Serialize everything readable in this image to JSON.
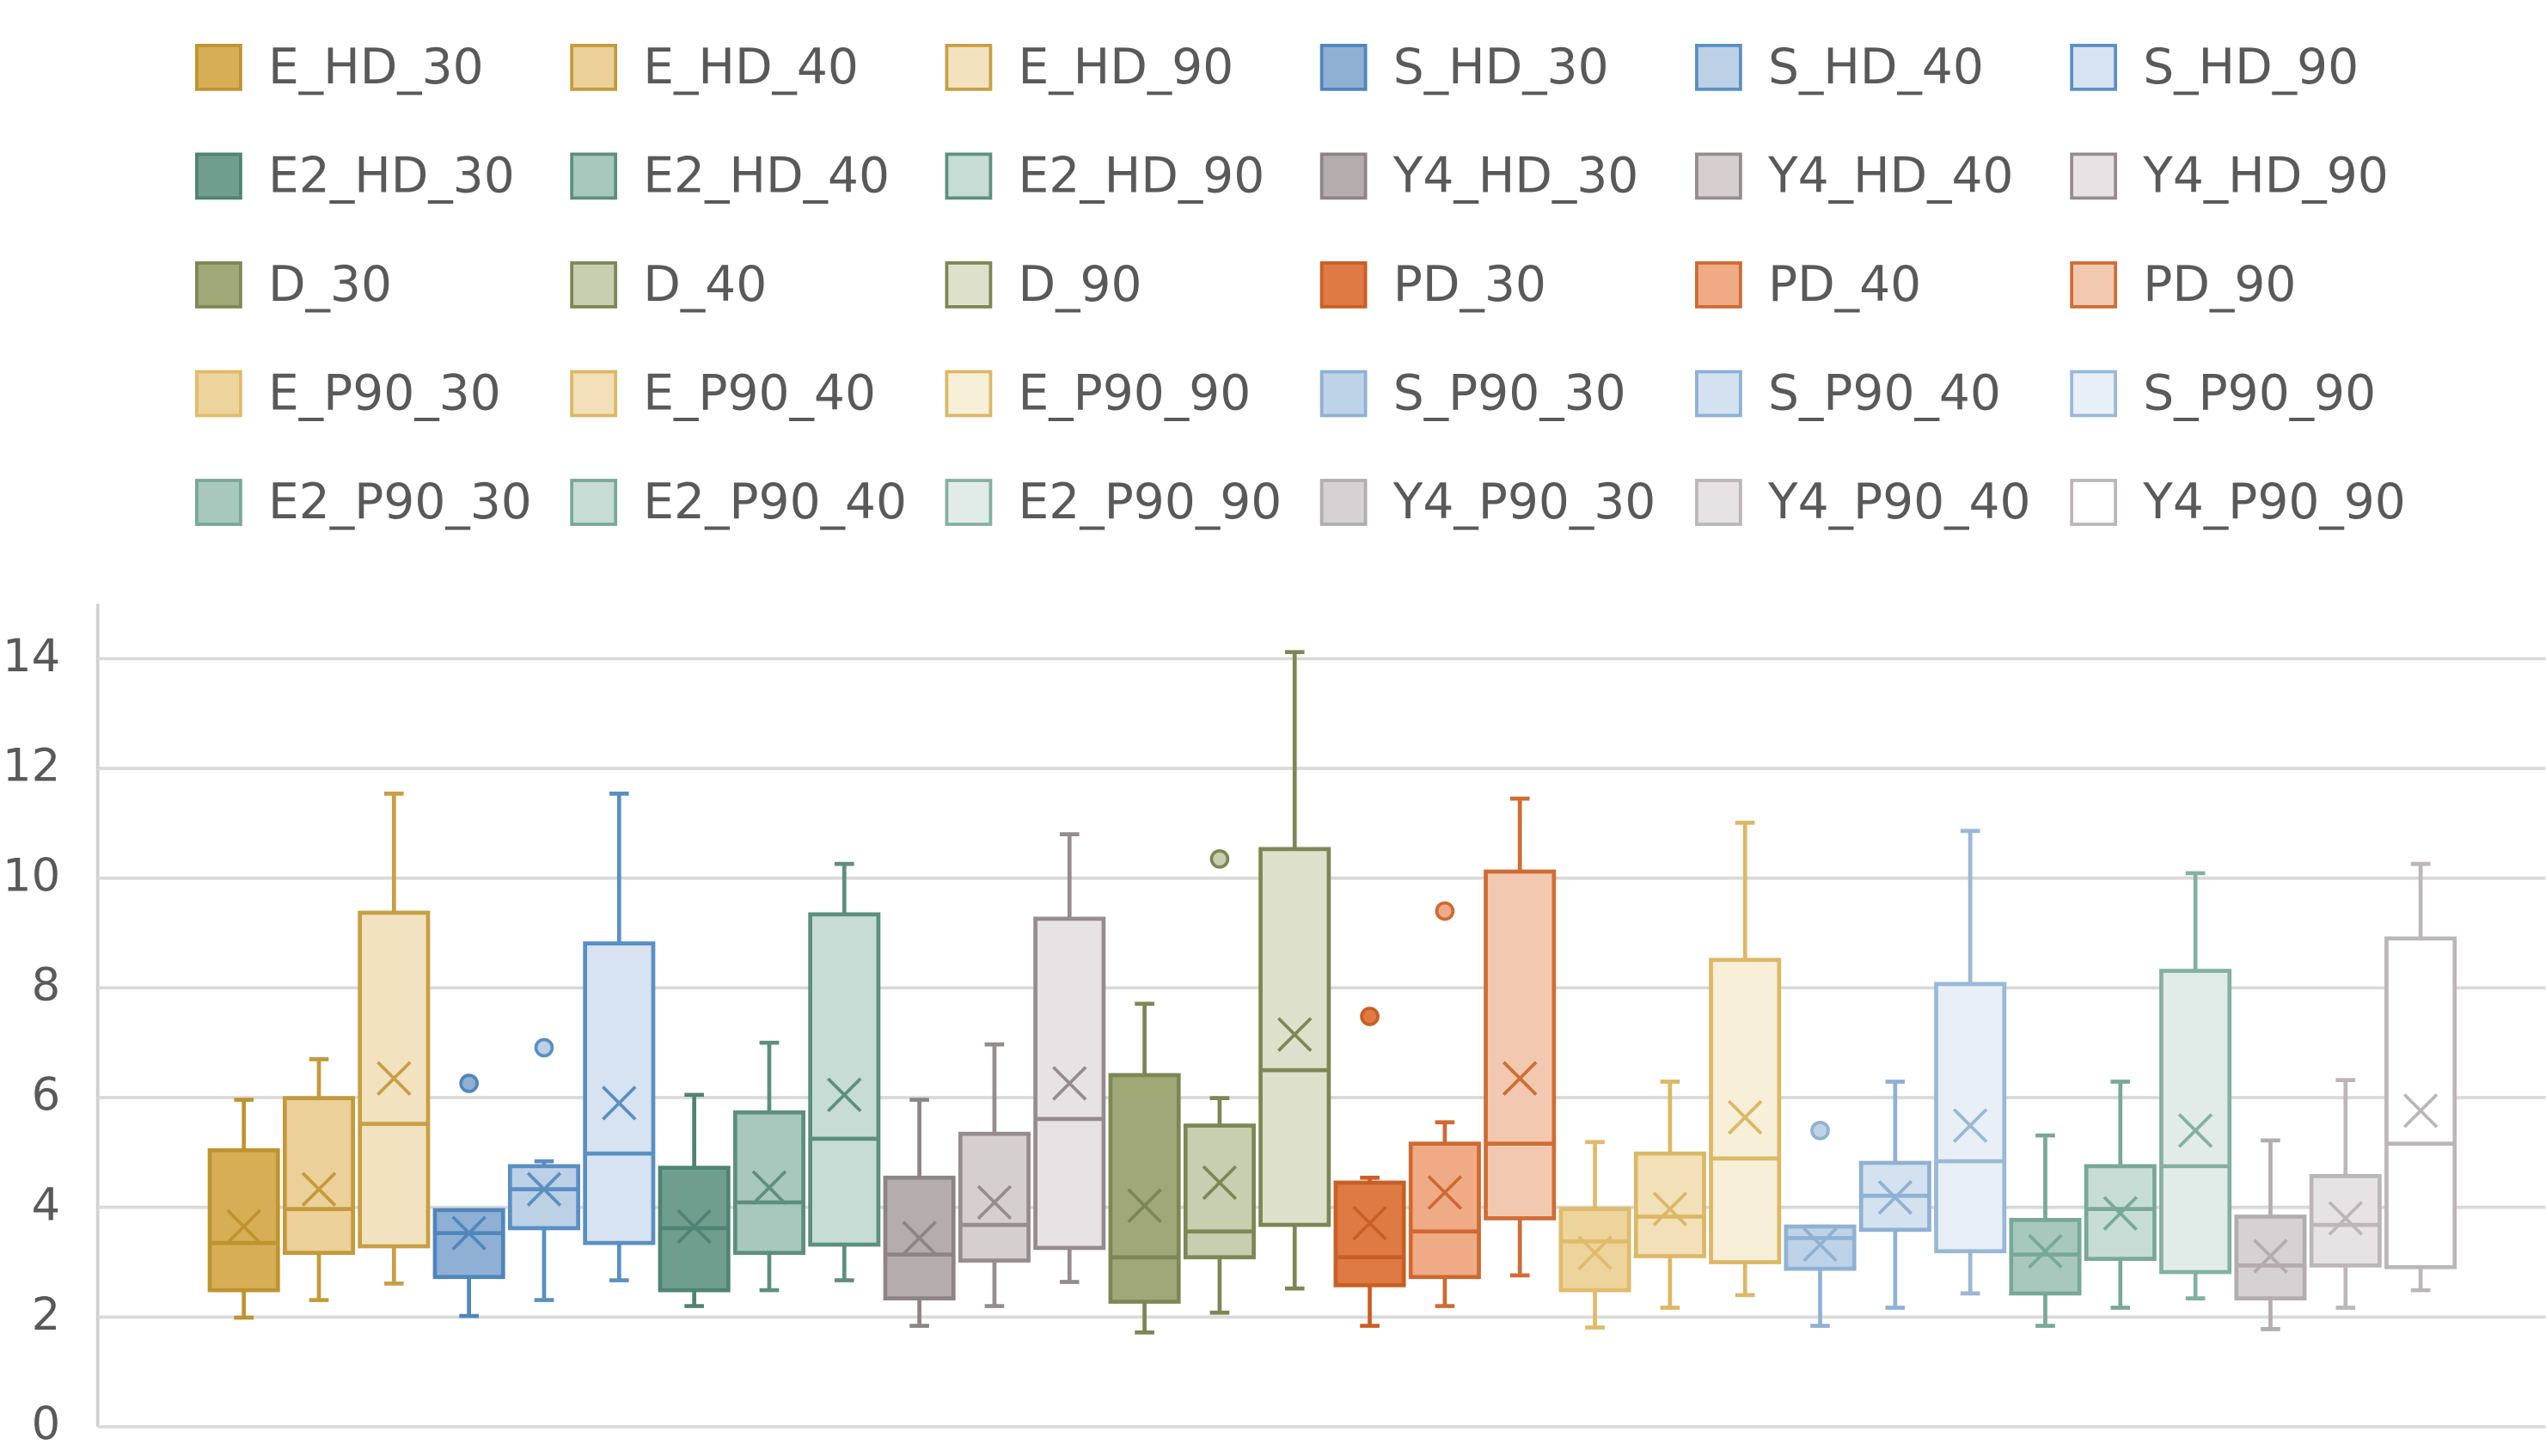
{
  "chart_data": {
    "type": "box",
    "ylim": [
      0,
      15
    ],
    "yticks": [
      0,
      2,
      4,
      6,
      8,
      10,
      12,
      14
    ],
    "grid": true,
    "series": [
      {
        "name": "E_HD_30",
        "color": "#d6ae55",
        "line_color": "#bf9330",
        "min": 1.99,
        "q1": 2.49,
        "median": 3.35,
        "q3": 5.04,
        "max": 5.96,
        "mean": 3.65,
        "outliers": []
      },
      {
        "name": "E_HD_40",
        "color": "#ebd09a",
        "line_color": "#c49a3c",
        "min": 2.31,
        "q1": 3.17,
        "median": 3.97,
        "q3": 5.99,
        "max": 6.7,
        "mean": 4.33,
        "outliers": []
      },
      {
        "name": "E_HD_90",
        "color": "#f2e2bf",
        "line_color": "#c89f45",
        "min": 2.61,
        "q1": 3.29,
        "median": 5.52,
        "q3": 9.37,
        "max": 11.54,
        "mean": 6.35,
        "outliers": []
      },
      {
        "name": "S_HD_30",
        "color": "#8fb0d4",
        "line_color": "#4f86bd",
        "min": 2.02,
        "q1": 2.73,
        "median": 3.53,
        "q3": 3.95,
        "max": 3.95,
        "mean": 3.53,
        "outliers": [
          6.26
        ]
      },
      {
        "name": "S_HD_40",
        "color": "#bcd0e6",
        "line_color": "#5a8fc3",
        "min": 2.31,
        "q1": 3.62,
        "median": 4.33,
        "q3": 4.75,
        "max": 4.84,
        "mean": 4.33,
        "outliers": [
          6.91
        ]
      },
      {
        "name": "S_HD_90",
        "color": "#d7e3f0",
        "line_color": "#5a8fc3",
        "min": 2.67,
        "q1": 3.35,
        "median": 4.98,
        "q3": 8.81,
        "max": 11.54,
        "mean": 5.9,
        "outliers": []
      },
      {
        "name": "E2_HD_30",
        "color": "#6f9e8f",
        "line_color": "#4f8373",
        "min": 2.2,
        "q1": 2.49,
        "median": 3.62,
        "q3": 4.72,
        "max": 6.05,
        "mean": 3.65,
        "outliers": []
      },
      {
        "name": "E2_HD_40",
        "color": "#a9c8bd",
        "line_color": "#5d8f7f",
        "min": 2.49,
        "q1": 3.17,
        "median": 4.09,
        "q3": 5.73,
        "max": 7.0,
        "mean": 4.36,
        "outliers": []
      },
      {
        "name": "E2_HD_90",
        "color": "#c6dcd4",
        "line_color": "#5d8f7f",
        "min": 2.67,
        "q1": 3.32,
        "median": 5.25,
        "q3": 9.34,
        "max": 10.26,
        "mean": 6.05,
        "outliers": []
      },
      {
        "name": "Y4_HD_30",
        "color": "#b5acad",
        "line_color": "#8e8486",
        "min": 1.84,
        "q1": 2.34,
        "median": 3.14,
        "q3": 4.54,
        "max": 5.96,
        "mean": 3.44,
        "outliers": []
      },
      {
        "name": "Y4_HD_40",
        "color": "#d5cfd0",
        "line_color": "#968c8e",
        "min": 2.2,
        "q1": 3.03,
        "median": 3.68,
        "q3": 5.34,
        "max": 6.97,
        "mean": 4.09,
        "outliers": []
      },
      {
        "name": "Y4_HD_90",
        "color": "#e7e3e4",
        "line_color": "#968c8e",
        "min": 2.64,
        "q1": 3.26,
        "median": 5.61,
        "q3": 9.26,
        "max": 10.8,
        "mean": 6.26,
        "outliers": []
      },
      {
        "name": "D_30",
        "color": "#a0a878",
        "line_color": "#7d8755",
        "min": 1.72,
        "q1": 2.28,
        "median": 3.09,
        "q3": 6.41,
        "max": 7.71,
        "mean": 4.03,
        "outliers": []
      },
      {
        "name": "D_40",
        "color": "#c8ceb0",
        "line_color": "#7d8755",
        "min": 2.08,
        "q1": 3.09,
        "median": 3.56,
        "q3": 5.49,
        "max": 5.99,
        "mean": 4.45,
        "outliers": [
          10.35
        ]
      },
      {
        "name": "D_90",
        "color": "#dde1cc",
        "line_color": "#7d8755",
        "min": 2.52,
        "q1": 3.68,
        "median": 6.5,
        "q3": 10.53,
        "max": 14.12,
        "mean": 7.15,
        "outliers": []
      },
      {
        "name": "PD_30",
        "color": "#e07a44",
        "line_color": "#c85f24",
        "min": 1.84,
        "q1": 2.58,
        "median": 3.09,
        "q3": 4.45,
        "max": 4.54,
        "mean": 3.71,
        "outliers": [
          7.48
        ]
      },
      {
        "name": "PD_40",
        "color": "#eeab86",
        "line_color": "#cf6a32",
        "min": 2.2,
        "q1": 2.73,
        "median": 3.56,
        "q3": 5.16,
        "max": 5.55,
        "mean": 4.27,
        "outliers": [
          9.4
        ]
      },
      {
        "name": "PD_90",
        "color": "#f2c9b0",
        "line_color": "#d06c35",
        "min": 2.76,
        "q1": 3.8,
        "median": 5.16,
        "q3": 10.12,
        "max": 11.45,
        "mean": 6.35,
        "outliers": []
      },
      {
        "name": "E_P90_30",
        "color": "#edd49d",
        "line_color": "#e0bb6a",
        "min": 1.81,
        "q1": 2.49,
        "median": 3.38,
        "q3": 3.97,
        "max": 5.19,
        "mean": 3.17,
        "outliers": []
      },
      {
        "name": "E_P90_40",
        "color": "#f2e0b9",
        "line_color": "#dcb866",
        "min": 2.17,
        "q1": 3.11,
        "median": 3.83,
        "q3": 4.98,
        "max": 6.29,
        "mean": 3.97,
        "outliers": []
      },
      {
        "name": "E_P90_90",
        "color": "#f8efd9",
        "line_color": "#dcb866",
        "min": 2.4,
        "q1": 3.0,
        "median": 4.89,
        "q3": 8.51,
        "max": 11.01,
        "mean": 5.64,
        "outliers": []
      },
      {
        "name": "S_P90_30",
        "color": "#bfd3e8",
        "line_color": "#8fb1d3",
        "min": 1.84,
        "q1": 2.88,
        "median": 3.44,
        "q3": 3.65,
        "max": 3.65,
        "mean": 3.32,
        "outliers": [
          5.4
        ]
      },
      {
        "name": "S_P90_40",
        "color": "#d4e2f0",
        "line_color": "#8fb1d3",
        "min": 2.17,
        "q1": 3.59,
        "median": 4.21,
        "q3": 4.81,
        "max": 6.29,
        "mean": 4.18,
        "outliers": []
      },
      {
        "name": "S_P90_90",
        "color": "#e8eff7",
        "line_color": "#9ab8d6",
        "min": 2.43,
        "q1": 3.2,
        "median": 4.84,
        "q3": 8.07,
        "max": 10.86,
        "mean": 5.49,
        "outliers": []
      },
      {
        "name": "E2_P90_30",
        "color": "#a8c8bd",
        "line_color": "#78a898",
        "min": 1.84,
        "q1": 2.43,
        "median": 3.14,
        "q3": 3.77,
        "max": 5.31,
        "mean": 3.2,
        "outliers": []
      },
      {
        "name": "E2_P90_40",
        "color": "#c6dcd5",
        "line_color": "#78a898",
        "min": 2.17,
        "q1": 3.06,
        "median": 3.97,
        "q3": 4.75,
        "max": 6.29,
        "mean": 3.89,
        "outliers": []
      },
      {
        "name": "E2_P90_90",
        "color": "#e1ece8",
        "line_color": "#84b0a2",
        "min": 2.34,
        "q1": 2.82,
        "median": 4.75,
        "q3": 8.31,
        "max": 10.09,
        "mean": 5.4,
        "outliers": []
      },
      {
        "name": "Y4_P90_30",
        "color": "#d6d1d2",
        "line_color": "#b4acae",
        "min": 1.78,
        "q1": 2.34,
        "median": 2.94,
        "q3": 3.83,
        "max": 5.22,
        "mean": 3.11,
        "outliers": []
      },
      {
        "name": "Y4_P90_40",
        "color": "#e6e3e4",
        "line_color": "#bdb6b8",
        "min": 2.17,
        "q1": 2.94,
        "median": 3.68,
        "q3": 4.57,
        "max": 6.32,
        "mean": 3.8,
        "outliers": []
      },
      {
        "name": "Y4_P90_90",
        "color": "#ffffff",
        "line_color": "#bdb6b8",
        "min": 2.49,
        "q1": 2.91,
        "median": 5.16,
        "q3": 8.9,
        "max": 10.26,
        "mean": 5.76,
        "outliers": []
      }
    ]
  }
}
